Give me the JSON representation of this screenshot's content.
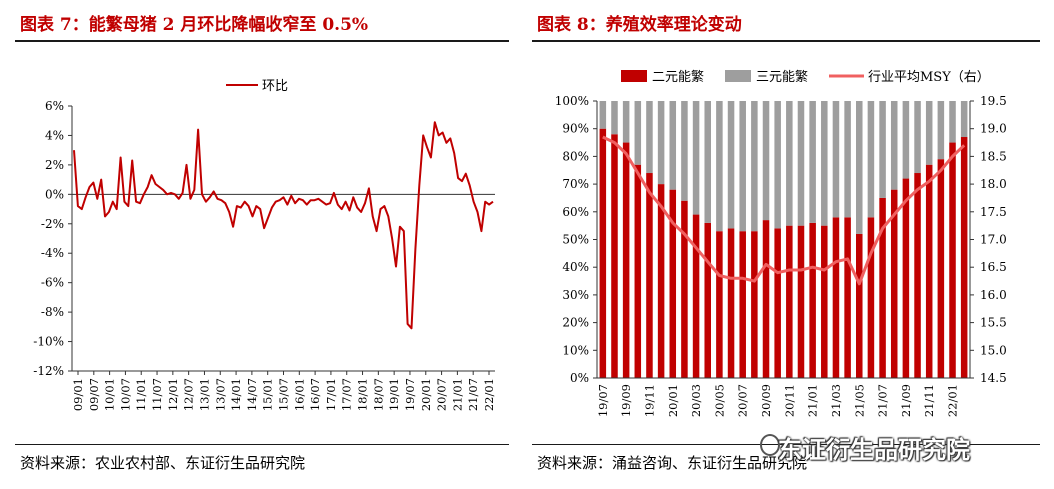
{
  "left": {
    "title": "图表 7：能繁母猪 2 月环比降幅收窄至 0.5%",
    "source": "资料来源：农业农村部、东证衍生品研究院"
  },
  "right": {
    "title": "图表 8：养殖效率理论变动",
    "source": "资料来源：涌益咨询、东证衍生品研究院",
    "watermark": "东证衍生品研究院"
  },
  "colors": {
    "title": "#c00000",
    "line": "#c00000",
    "bar_red": "#c00000",
    "bar_gray": "#9e9e9e",
    "msy": "#f06060"
  },
  "chart_data": [
    {
      "type": "line",
      "series": [
        {
          "name": "环比",
          "values": [
            3.0,
            -0.8,
            -1.0,
            -0.2,
            0.5,
            0.8,
            -0.3,
            1.0,
            -1.5,
            -1.2,
            -0.5,
            -1.0,
            2.5,
            -0.5,
            -0.8,
            2.3,
            -0.5,
            -0.6,
            0.0,
            0.5,
            1.3,
            0.7,
            0.5,
            0.3,
            0.0,
            0.1,
            0.0,
            -0.3,
            0.1,
            2.0,
            -0.3,
            0.3,
            4.4,
            0.0,
            -0.5,
            -0.2,
            0.2,
            -0.3,
            -0.4,
            -0.6,
            -1.2,
            -2.2,
            -0.8,
            -0.9,
            -0.5,
            -0.8,
            -1.5,
            -0.8,
            -1.0,
            -2.3,
            -1.6,
            -0.9,
            -0.5,
            -0.4,
            -0.2,
            -0.7,
            -0.1,
            -0.6,
            -0.3,
            -0.4,
            -0.7,
            -0.4,
            -0.4,
            -0.3,
            -0.5,
            -0.7,
            -0.6,
            0.1,
            -0.7,
            -1.0,
            -0.5,
            -1.1,
            -0.2,
            -0.9,
            -1.2,
            -0.6,
            0.4,
            -1.5,
            -2.5,
            -1.0,
            -0.8,
            -1.5,
            -3.0,
            -4.9,
            -2.2,
            -2.5,
            -8.8,
            -9.1,
            -3.7,
            0.6,
            4.0,
            3.2,
            2.5,
            4.9,
            4.0,
            4.2,
            3.5,
            3.8,
            2.8,
            1.1,
            0.9,
            1.4,
            0.6,
            -0.5,
            -1.2,
            -2.5,
            -0.5,
            -0.7,
            -0.5
          ]
        }
      ],
      "ylim": [
        -12,
        6
      ],
      "yticks": [
        "6%",
        "4%",
        "2%",
        "0%",
        "-2%",
        "-4%",
        "-6%",
        "-8%",
        "-10%",
        "-12%"
      ],
      "xticks": [
        "09/01",
        "09/07",
        "10/01",
        "10/07",
        "11/01",
        "11/07",
        "12/01",
        "12/07",
        "13/01",
        "13/07",
        "14/01",
        "14/07",
        "15/01",
        "15/07",
        "16/01",
        "16/07",
        "17/01",
        "17/07",
        "18/01",
        "18/07",
        "19/01",
        "19/07",
        "20/01",
        "20/07",
        "21/01",
        "21/07",
        "22/01"
      ],
      "legend": "top-center"
    },
    {
      "type": "bar",
      "categories": [
        "19/07",
        "19/08",
        "19/09",
        "19/10",
        "19/11",
        "19/12",
        "20/01",
        "20/02",
        "20/03",
        "20/04",
        "20/05",
        "20/06",
        "20/07",
        "20/08",
        "20/09",
        "20/10",
        "20/11",
        "20/12",
        "21/01",
        "21/02",
        "21/03",
        "21/04",
        "21/05",
        "21/06",
        "21/07",
        "21/08",
        "21/09",
        "21/10",
        "21/11",
        "21/12",
        "22/01",
        "22/02"
      ],
      "xticks": [
        "19/07",
        "19/09",
        "19/11",
        "20/01",
        "20/03",
        "20/05",
        "20/07",
        "20/09",
        "20/11",
        "21/01",
        "21/03",
        "21/05",
        "21/07",
        "21/09",
        "21/11",
        "22/01"
      ],
      "series": [
        {
          "name": "二元能繁",
          "values": [
            90,
            88,
            85,
            77,
            74,
            70,
            68,
            64,
            59,
            56,
            53,
            54,
            53,
            53,
            57,
            54,
            55,
            55,
            56,
            55,
            58,
            58,
            52,
            58,
            65,
            68,
            72,
            74,
            77,
            79,
            85,
            87
          ]
        },
        {
          "name": "三元能繁",
          "values": [
            10,
            12,
            15,
            23,
            26,
            30,
            32,
            36,
            41,
            44,
            47,
            46,
            47,
            47,
            43,
            46,
            45,
            45,
            44,
            45,
            42,
            42,
            48,
            42,
            35,
            32,
            28,
            26,
            23,
            21,
            15,
            13
          ]
        },
        {
          "name": "行业平均MSY（右）",
          "axis": "right",
          "values": [
            18.85,
            18.75,
            18.55,
            18.2,
            17.85,
            17.6,
            17.3,
            17.1,
            16.85,
            16.6,
            16.35,
            16.3,
            16.3,
            16.25,
            16.55,
            16.4,
            16.45,
            16.45,
            16.5,
            16.45,
            16.6,
            16.65,
            16.2,
            16.75,
            17.2,
            17.45,
            17.7,
            17.9,
            18.05,
            18.25,
            18.5,
            18.7
          ]
        }
      ],
      "ylim": [
        0,
        100
      ],
      "y2lim": [
        14.5,
        19.5
      ],
      "yticks": [
        "100%",
        "90%",
        "80%",
        "70%",
        "60%",
        "50%",
        "40%",
        "30%",
        "20%",
        "10%",
        "0%"
      ],
      "y2ticks": [
        "19.5",
        "19.0",
        "18.5",
        "18.0",
        "17.5",
        "17.0",
        "16.5",
        "16.0",
        "15.5",
        "15.0",
        "14.5"
      ],
      "legend": "top"
    }
  ]
}
